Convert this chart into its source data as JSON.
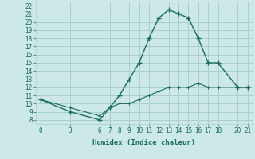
{
  "xlabel": "Humidex (Indice chaleur)",
  "bg_color": "#cce8e8",
  "grid_color": "#aacfcf",
  "line_color": "#1a6b5a",
  "line1_x": [
    0,
    3,
    6,
    7,
    8,
    9,
    10,
    11,
    12,
    13,
    14,
    15,
    16,
    17,
    18,
    20,
    21
  ],
  "line1_y": [
    10.5,
    9.0,
    8.0,
    9.5,
    11.0,
    13.0,
    15.0,
    18.0,
    20.5,
    21.5,
    21.0,
    20.5,
    18.0,
    15.0,
    15.0,
    12.0,
    12.0
  ],
  "line2_x": [
    0,
    3,
    6,
    7,
    8,
    9,
    10,
    11,
    12,
    13,
    14,
    15,
    16,
    17,
    18,
    20,
    21
  ],
  "line2_y": [
    10.5,
    9.5,
    8.5,
    9.5,
    10.0,
    10.0,
    10.5,
    11.0,
    11.5,
    12.0,
    12.0,
    12.0,
    12.5,
    12.0,
    12.0,
    12.0,
    12.0
  ],
  "xticks": [
    0,
    3,
    6,
    7,
    8,
    9,
    10,
    11,
    12,
    13,
    14,
    15,
    16,
    17,
    18,
    20,
    21
  ],
  "yticks": [
    8,
    9,
    10,
    11,
    12,
    13,
    14,
    15,
    16,
    17,
    18,
    19,
    20,
    21,
    22
  ],
  "ylim": [
    7.5,
    22.5
  ],
  "xlim": [
    -0.5,
    21.5
  ]
}
